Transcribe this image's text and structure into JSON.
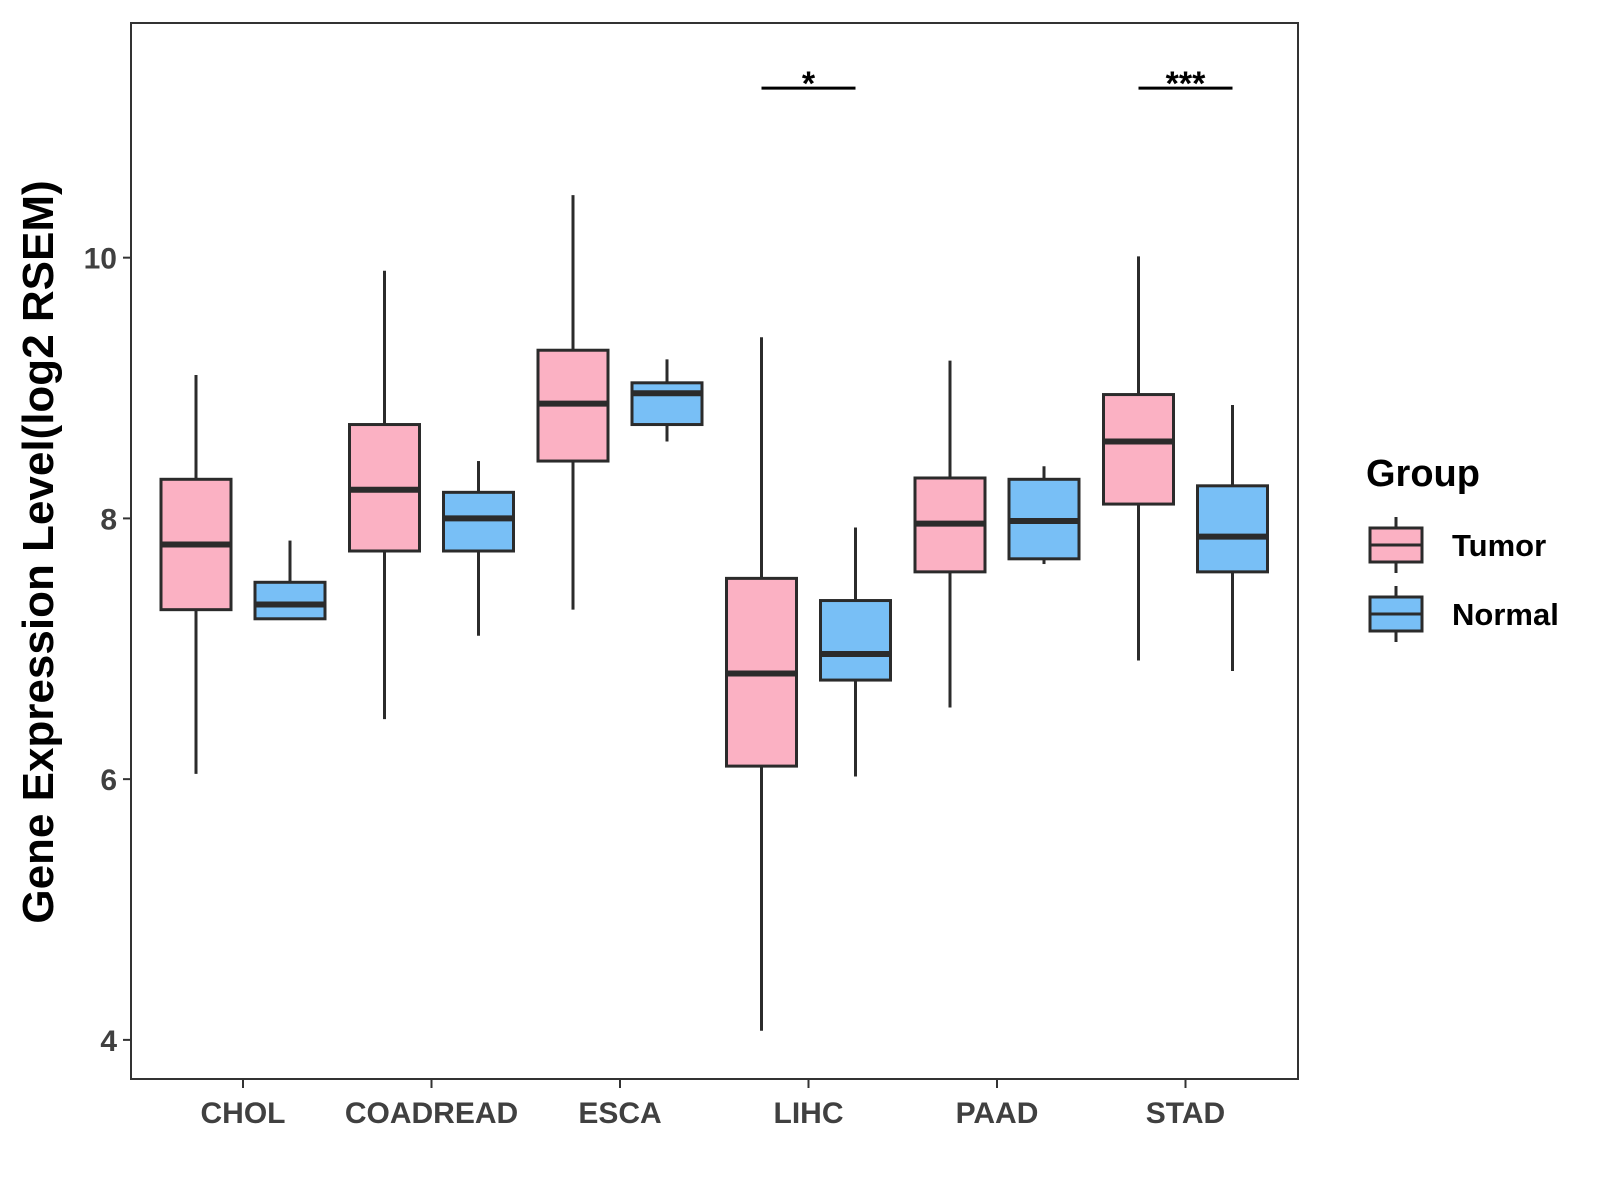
{
  "chart_data": {
    "type": "boxplot",
    "ylabel": "Gene Expression Level(log2 RSEM)",
    "xlabel": "",
    "ylim": [
      3.7,
      11.8
    ],
    "yticks": [
      4,
      6,
      8,
      10
    ],
    "categories": [
      "CHOL",
      "COADREAD",
      "ESCA",
      "LIHC",
      "PAAD",
      "STAD"
    ],
    "legend": {
      "title": "Group",
      "position": "right"
    },
    "series": [
      {
        "name": "Tumor",
        "color": "#FBB1C3",
        "boxes": [
          {
            "whisker_low": 6.04,
            "q1": 7.3,
            "median": 7.8,
            "q3": 8.3,
            "whisker_high": 9.1
          },
          {
            "whisker_low": 6.46,
            "q1": 7.75,
            "median": 8.22,
            "q3": 8.72,
            "whisker_high": 9.9
          },
          {
            "whisker_low": 7.3,
            "q1": 8.44,
            "median": 8.88,
            "q3": 9.29,
            "whisker_high": 10.48
          },
          {
            "whisker_low": 4.07,
            "q1": 6.1,
            "median": 6.81,
            "q3": 7.54,
            "whisker_high": 9.39
          },
          {
            "whisker_low": 6.55,
            "q1": 7.59,
            "median": 7.96,
            "q3": 8.31,
            "whisker_high": 9.21
          },
          {
            "whisker_low": 6.91,
            "q1": 8.11,
            "median": 8.59,
            "q3": 8.95,
            "whisker_high": 10.01
          }
        ]
      },
      {
        "name": "Normal",
        "color": "#78BFF6",
        "boxes": [
          {
            "whisker_low": 7.23,
            "q1": 7.23,
            "median": 7.34,
            "q3": 7.51,
            "whisker_high": 7.83
          },
          {
            "whisker_low": 7.1,
            "q1": 7.75,
            "median": 8.0,
            "q3": 8.2,
            "whisker_high": 8.44
          },
          {
            "whisker_low": 8.59,
            "q1": 8.72,
            "median": 8.96,
            "q3": 9.04,
            "whisker_high": 9.22
          },
          {
            "whisker_low": 6.02,
            "q1": 6.76,
            "median": 6.96,
            "q3": 7.37,
            "whisker_high": 7.93
          },
          {
            "whisker_low": 7.65,
            "q1": 7.69,
            "median": 7.98,
            "q3": 8.3,
            "whisker_high": 8.4
          },
          {
            "whisker_low": 6.83,
            "q1": 7.59,
            "median": 7.86,
            "q3": 8.25,
            "whisker_high": 8.87
          }
        ]
      }
    ],
    "annotations": [
      {
        "category": "LIHC",
        "label": "*",
        "y": 11.3
      },
      {
        "category": "STAD",
        "label": "***",
        "y": 11.3
      }
    ]
  }
}
